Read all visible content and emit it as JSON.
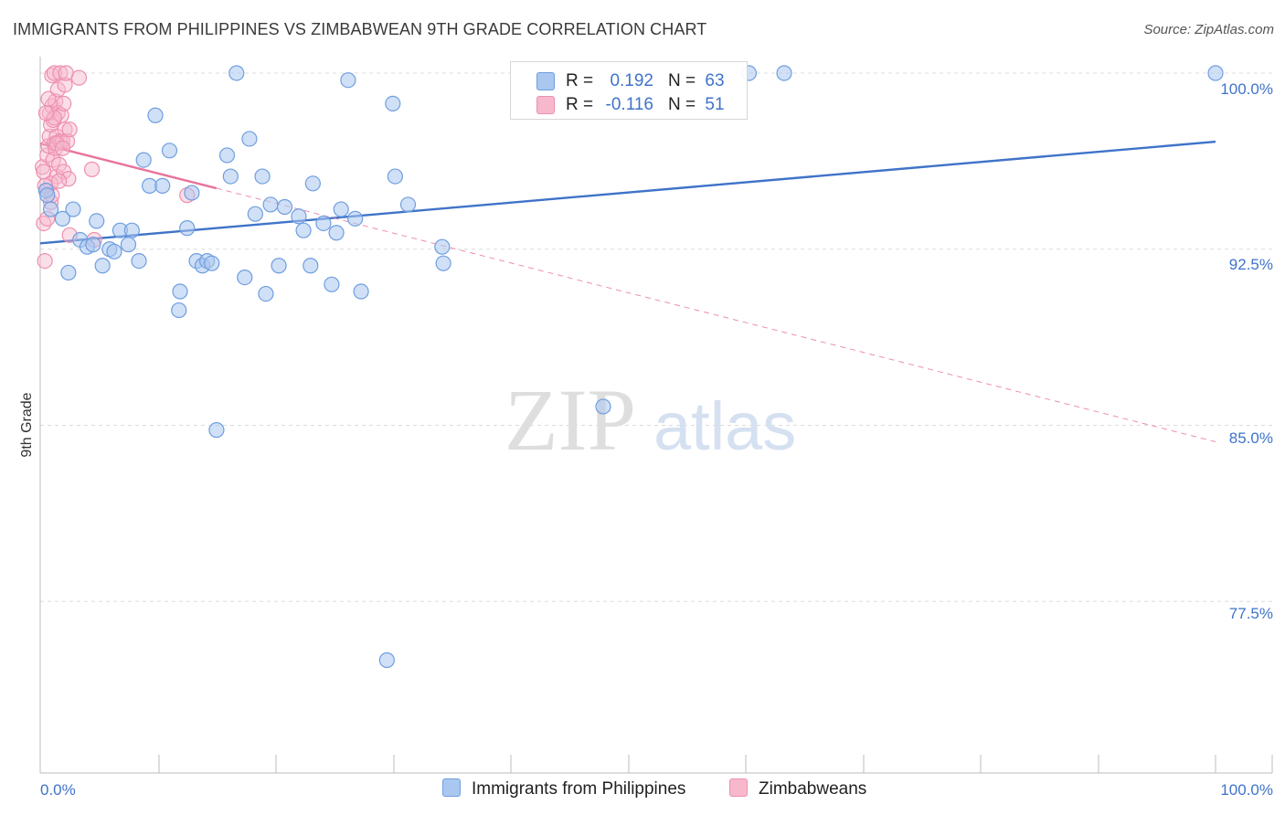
{
  "title": "IMMIGRANTS FROM PHILIPPINES VS ZIMBABWEAN 9TH GRADE CORRELATION CHART",
  "source": "Source: ZipAtlas.com",
  "watermark": {
    "zip": "ZIP",
    "atlas": "atlas"
  },
  "colors": {
    "blue": "#3f73c9",
    "blue_fill": "#a9c7ef",
    "blue_stroke": "#6f9ee0",
    "pink": "#e8739c",
    "pink_fill": "#f7b8cc",
    "pink_stroke": "#ee8fb0",
    "grid": "#dcdcdc"
  },
  "stats": [
    {
      "r_label": "R =",
      "r_value": "0.192",
      "n_label": "N =",
      "n_value": "63",
      "color": "#a9c7ef",
      "border": "#6f9ee0"
    },
    {
      "r_label": "R =",
      "r_value": "-0.116",
      "n_label": "N =",
      "n_value": "51",
      "color": "#f7b8cc",
      "border": "#ee8fb0"
    }
  ],
  "chart_data": {
    "type": "scatter",
    "title": "IMMIGRANTS FROM PHILIPPINES VS ZIMBABWEAN 9TH GRADE CORRELATION CHART",
    "xlabel": "",
    "ylabel": "9th Grade",
    "xlim": [
      0,
      100
    ],
    "ylim": [
      70.0,
      101.5
    ],
    "x_tick_labels": [
      "0.0%",
      "100.0%"
    ],
    "y_ticks": [
      100.0,
      92.5,
      85.0,
      77.5
    ],
    "y_tick_labels": [
      "100.0%",
      "92.5%",
      "85.0%",
      "77.5%"
    ],
    "grid": true,
    "legend": [
      "Immigrants from Philippines",
      "Zimbabweans"
    ],
    "series": [
      {
        "name": "Immigrants from Philippines",
        "color": "#3f73c9",
        "points": [
          [
            0.5,
            95.0
          ],
          [
            0.6,
            94.8
          ],
          [
            0.9,
            94.2
          ],
          [
            1.9,
            93.8
          ],
          [
            2.4,
            91.5
          ],
          [
            2.8,
            94.2
          ],
          [
            3.4,
            92.9
          ],
          [
            4.0,
            92.6
          ],
          [
            4.5,
            92.7
          ],
          [
            4.8,
            93.7
          ],
          [
            5.3,
            91.8
          ],
          [
            5.9,
            92.5
          ],
          [
            6.3,
            92.4
          ],
          [
            6.8,
            93.3
          ],
          [
            7.5,
            92.7
          ],
          [
            7.8,
            93.3
          ],
          [
            8.4,
            92.0
          ],
          [
            8.8,
            96.3
          ],
          [
            9.3,
            95.2
          ],
          [
            9.8,
            98.2
          ],
          [
            10.4,
            95.2
          ],
          [
            11.0,
            96.7
          ],
          [
            11.8,
            89.9
          ],
          [
            11.9,
            90.7
          ],
          [
            12.5,
            93.4
          ],
          [
            12.9,
            94.9
          ],
          [
            13.3,
            92.0
          ],
          [
            13.8,
            91.8
          ],
          [
            14.2,
            92.0
          ],
          [
            14.6,
            91.9
          ],
          [
            15.0,
            84.8
          ],
          [
            15.9,
            96.5
          ],
          [
            16.2,
            95.6
          ],
          [
            16.7,
            100.0
          ],
          [
            17.4,
            91.3
          ],
          [
            17.8,
            97.2
          ],
          [
            18.3,
            94.0
          ],
          [
            18.9,
            95.6
          ],
          [
            19.2,
            90.6
          ],
          [
            19.6,
            94.4
          ],
          [
            20.3,
            91.8
          ],
          [
            20.8,
            94.3
          ],
          [
            22.0,
            93.9
          ],
          [
            22.4,
            93.3
          ],
          [
            23.0,
            91.8
          ],
          [
            23.2,
            95.3
          ],
          [
            24.1,
            93.6
          ],
          [
            24.8,
            91.0
          ],
          [
            25.2,
            93.2
          ],
          [
            25.6,
            94.2
          ],
          [
            26.8,
            93.8
          ],
          [
            27.3,
            90.7
          ],
          [
            26.2,
            99.7
          ],
          [
            29.5,
            75.0
          ],
          [
            30.0,
            98.7
          ],
          [
            30.2,
            95.6
          ],
          [
            31.3,
            94.4
          ],
          [
            34.2,
            92.6
          ],
          [
            34.3,
            91.9
          ],
          [
            47.9,
            85.8
          ],
          [
            60.3,
            100.0
          ],
          [
            63.3,
            100.0
          ],
          [
            100.0,
            100.0
          ]
        ],
        "trend": {
          "x": [
            0,
            100
          ],
          "y": [
            92.75,
            97.08
          ]
        }
      },
      {
        "name": "Zimbabweans",
        "color": "#e8739c",
        "points": [
          [
            0.2,
            96.0
          ],
          [
            0.3,
            95.8
          ],
          [
            0.3,
            93.6
          ],
          [
            0.4,
            92.0
          ],
          [
            0.5,
            95.0
          ],
          [
            0.6,
            93.8
          ],
          [
            0.6,
            96.5
          ],
          [
            0.7,
            96.9
          ],
          [
            0.8,
            97.3
          ],
          [
            0.8,
            98.3
          ],
          [
            0.9,
            94.5
          ],
          [
            0.9,
            97.8
          ],
          [
            1.0,
            98.6
          ],
          [
            1.0,
            99.9
          ],
          [
            1.1,
            96.3
          ],
          [
            1.1,
            98.0
          ],
          [
            1.2,
            97.0
          ],
          [
            1.2,
            100.0
          ],
          [
            1.3,
            96.8
          ],
          [
            1.3,
            98.8
          ],
          [
            1.4,
            95.6
          ],
          [
            1.4,
            97.3
          ],
          [
            1.5,
            98.3
          ],
          [
            1.5,
            99.3
          ],
          [
            1.6,
            96.1
          ],
          [
            1.7,
            97.1
          ],
          [
            1.7,
            100.0
          ],
          [
            1.8,
            98.2
          ],
          [
            1.9,
            97.1
          ],
          [
            2.0,
            95.8
          ],
          [
            2.0,
            98.7
          ],
          [
            2.1,
            97.6
          ],
          [
            2.1,
            99.5
          ],
          [
            2.2,
            100.0
          ],
          [
            2.3,
            97.1
          ],
          [
            2.4,
            95.5
          ],
          [
            2.5,
            93.1
          ],
          [
            2.5,
            97.6
          ],
          [
            3.3,
            99.8
          ],
          [
            4.4,
            95.9
          ],
          [
            4.6,
            92.9
          ],
          [
            12.5,
            94.8
          ],
          [
            0.9,
            95.3
          ],
          [
            1.0,
            94.8
          ],
          [
            1.2,
            98.1
          ],
          [
            1.4,
            97.0
          ],
          [
            0.4,
            95.2
          ],
          [
            0.7,
            98.9
          ],
          [
            1.9,
            96.8
          ],
          [
            1.6,
            95.4
          ],
          [
            0.5,
            98.3
          ]
        ],
        "trend": {
          "x": [
            0,
            100
          ],
          "y": [
            97.0,
            84.3
          ]
        },
        "trend_solid_until_x": 15
      }
    ]
  },
  "bottom_legend": [
    {
      "label": "Immigrants from Philippines",
      "color": "#a9c7ef",
      "border": "#6f9ee0"
    },
    {
      "label": "Zimbabweans",
      "color": "#f7b8cc",
      "border": "#ee8fb0"
    }
  ]
}
